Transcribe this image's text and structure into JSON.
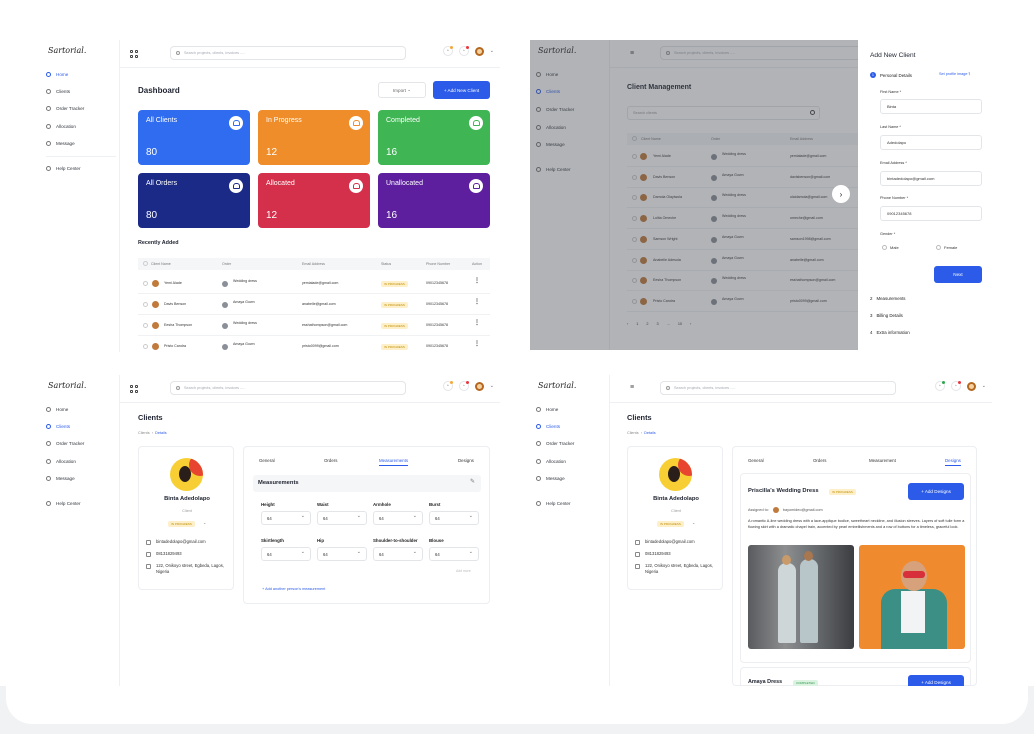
{
  "brand": "Sartorial.",
  "nav": [
    "Home",
    "Clients",
    "Order Tracker",
    "Allocation",
    "Message",
    "Help Center"
  ],
  "search_placeholder": "Search projects, clients, invoices .....",
  "colors": {
    "accent": "#2b5be8",
    "blue": "#2f6cf0",
    "orange": "#ef8d2a",
    "green": "#3fb553",
    "navy": "#1a2a86",
    "red": "#d5304b",
    "purple": "#5d1f9e"
  },
  "dashboard": {
    "title": "Dashboard",
    "import_label": "Import",
    "add_client_label": "+  Add New Client",
    "cards": [
      {
        "label": "All Clients",
        "value": "80",
        "color": "#2f6cf0"
      },
      {
        "label": "In Progress",
        "value": "12",
        "color": "#ef8d2a"
      },
      {
        "label": "Completed",
        "value": "16",
        "color": "#3fb553"
      },
      {
        "label": "All Orders",
        "value": "80",
        "color": "#1a2a86"
      },
      {
        "label": "Allocated",
        "value": "12",
        "color": "#d5304b"
      },
      {
        "label": "Unallocated",
        "value": "16",
        "color": "#5d1f9e"
      }
    ],
    "recent_title": "Recently Added",
    "columns": [
      "Client Name",
      "Order",
      "Email Address",
      "Status",
      "Phone Number",
      "Action"
    ],
    "rows": [
      {
        "name": "Yemi Alade",
        "order": "Wedding dress",
        "email": "yemialade@gmail.com",
        "status": "IN PROGRESS",
        "phone": "09012345678"
      },
      {
        "name": "Davis Benson",
        "order": "Amaya Gown",
        "email": "anabelle@gmail.com",
        "status": "IN PROGRESS",
        "phone": "09012345678"
      },
      {
        "name": "Eesha Thompson",
        "order": "Wedding dress",
        "email": "esshathompson@gmail.com",
        "status": "IN PROGRESS",
        "phone": "09012345678"
      },
      {
        "name": "Pristo Candra",
        "order": "Amaya Gown",
        "email": "pristo0099@gmail.com",
        "status": "IN PROGRESS",
        "phone": "09012345678"
      }
    ]
  },
  "client_mgmt": {
    "title": "Client Management",
    "search_placeholder": "Search clients",
    "columns": [
      "Client Name",
      "Order",
      "Email Address"
    ],
    "rows": [
      {
        "name": "Yemi Alade",
        "order": "Wedding dress",
        "email": "yemialade@gmail.com"
      },
      {
        "name": "Davis Benson",
        "order": "Amaya Gown",
        "email": "davisbenson@gmail.com"
      },
      {
        "name": "Damola Olayiwola",
        "order": "Wedding dress",
        "email": "olaidamola@gmail.com"
      },
      {
        "name": "Lolita Omeche",
        "order": "Wedding dress",
        "email": "omeche@gmail.com"
      },
      {
        "name": "Samson Wright",
        "order": "Amaya Gown",
        "email": "samson1998@gmail.com"
      },
      {
        "name": "Anabelle Adesola",
        "order": "Amaya Gown",
        "email": "anabelle@gmail.com"
      },
      {
        "name": "Eesha Thompson",
        "order": "Wedding dress",
        "email": "esshathompson@gmail.com"
      },
      {
        "name": "Pristo Candra",
        "order": "Amaya Gown",
        "email": "pristo0099@gmail.com"
      }
    ],
    "pages": [
      "1",
      "2",
      "3",
      "...",
      "10"
    ]
  },
  "drawer": {
    "title": "Add New Client",
    "step1": "Personal Details",
    "set_photo": "Set profile image",
    "first_name_label": "First Name *",
    "first_name": "Binta",
    "last_name_label": "Last Name *",
    "last_name": "Adedolapo",
    "email_label": "Email Address *",
    "email": "bintadedolapo@gmail.com",
    "phone_label": "Phone Number *",
    "phone": "09012345678",
    "gender_label": "Gender *",
    "male": "Male",
    "female": "Female",
    "next": "Next",
    "steps": [
      {
        "n": "2",
        "label": "Measurements"
      },
      {
        "n": "3",
        "label": "Billing Details"
      },
      {
        "n": "4",
        "label": "Extra information"
      }
    ]
  },
  "client_profile": {
    "title": "Clients",
    "crumb_root": "Clients",
    "crumb_current": "Details",
    "name": "Binta Adedolapo",
    "role": "Client",
    "status": "IN PROGRESS",
    "email": "bintadedolapo@gmail.com",
    "phone": "08131829493",
    "address": "122, Onikoyo street, Egbeda, Lagos, Nigeria",
    "tabs": [
      "General",
      "Orders",
      "Measurements",
      "Designs"
    ],
    "section": "Measurements",
    "fields": [
      {
        "label": "Height",
        "value": "64"
      },
      {
        "label": "Waist",
        "value": "64"
      },
      {
        "label": "Armhole",
        "value": "64"
      },
      {
        "label": "Burst",
        "value": "64"
      },
      {
        "label": "Skirtlength",
        "value": "64"
      },
      {
        "label": "Hip",
        "value": "64"
      },
      {
        "label": "Shoulder-to-shoulder",
        "value": "64"
      },
      {
        "label": "Blouse",
        "value": "64"
      }
    ],
    "add_more": "Add more",
    "add_person": "+  Add another person's measurement"
  },
  "designs": {
    "title": "Clients",
    "crumb_root": "Clients",
    "crumb_current": "Details",
    "name": "Binta Adedolapo",
    "role": "Client",
    "status": "IN PROGRESS",
    "email": "bintadedolapo@gmail.com",
    "phone": "08131829493",
    "address": "122, Onikoyo street, Egbeda, Lagos, Nigeria",
    "tabs": [
      "General",
      "Orders",
      "Measurement",
      "Designs"
    ],
    "design1_title": "Priscilla's Wedding Dress",
    "design1_status": "IN PROGRESS",
    "assigned_label": "Assigned to:",
    "assigned_email": "bayomideo@gmail.com",
    "description": "A romantic A-line wedding dress with a lace-applique bodice, sweetheart neckline, and illusion sleeves. Layers of soft tulle form a flowing skirt with a dramatic chapel train, accented by pearl embellishments and a row of buttons for a timeless, graceful look.",
    "add_designs": "+  Add Designs",
    "design2_title": "Amaya Dress",
    "design2_status": "COMPLETED"
  }
}
